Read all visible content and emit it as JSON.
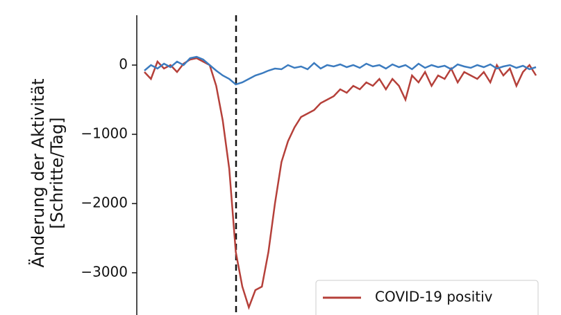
{
  "chart_data": {
    "type": "line",
    "ylabel": [
      "Änderung der Aktivität",
      "[Schritte/Tag]"
    ],
    "ylim": [
      -3610,
      720
    ],
    "yticks": [
      {
        "value": 0,
        "label": "0"
      },
      {
        "value": -1000,
        "label": "−1000"
      },
      {
        "value": -2000,
        "label": "−2000"
      },
      {
        "value": -3000,
        "label": "−3000"
      }
    ],
    "legend": "lower right",
    "series": [
      {
        "name": "COVID-19 positiv",
        "color": "#b5403a",
        "values": [
          -100,
          -200,
          50,
          -50,
          0,
          -100,
          20,
          80,
          100,
          50,
          0,
          -300,
          -800,
          -1500,
          -2700,
          -3200,
          -3500,
          -3250,
          -3200,
          -2700,
          -2000,
          -1400,
          -1100,
          -900,
          -750,
          -700,
          -650,
          -550,
          -500,
          -450,
          -350,
          -400,
          -300,
          -350,
          -250,
          -300,
          -200,
          -350,
          -200,
          -300,
          -500,
          -150,
          -250,
          -100,
          -300,
          -150,
          -200,
          -50,
          -250,
          -100,
          -150,
          -200,
          -100,
          -250,
          0,
          -150,
          -50,
          -300,
          -100,
          0,
          -150
        ]
      },
      {
        "name": null,
        "color": "#3b7bbf",
        "values": [
          -80,
          0,
          -50,
          20,
          -30,
          50,
          0,
          100,
          120,
          80,
          0,
          -80,
          -150,
          -200,
          -280,
          -250,
          -200,
          -150,
          -120,
          -80,
          -50,
          -60,
          0,
          -40,
          -20,
          -60,
          30,
          -50,
          0,
          -20,
          10,
          -30,
          0,
          -40,
          20,
          -20,
          0,
          -50,
          10,
          -30,
          0,
          -60,
          20,
          -40,
          0,
          -30,
          -10,
          -60,
          10,
          -20,
          -40,
          0,
          -30,
          10,
          -50,
          -20,
          0,
          -40,
          -10,
          -60,
          -30
        ]
      }
    ]
  }
}
